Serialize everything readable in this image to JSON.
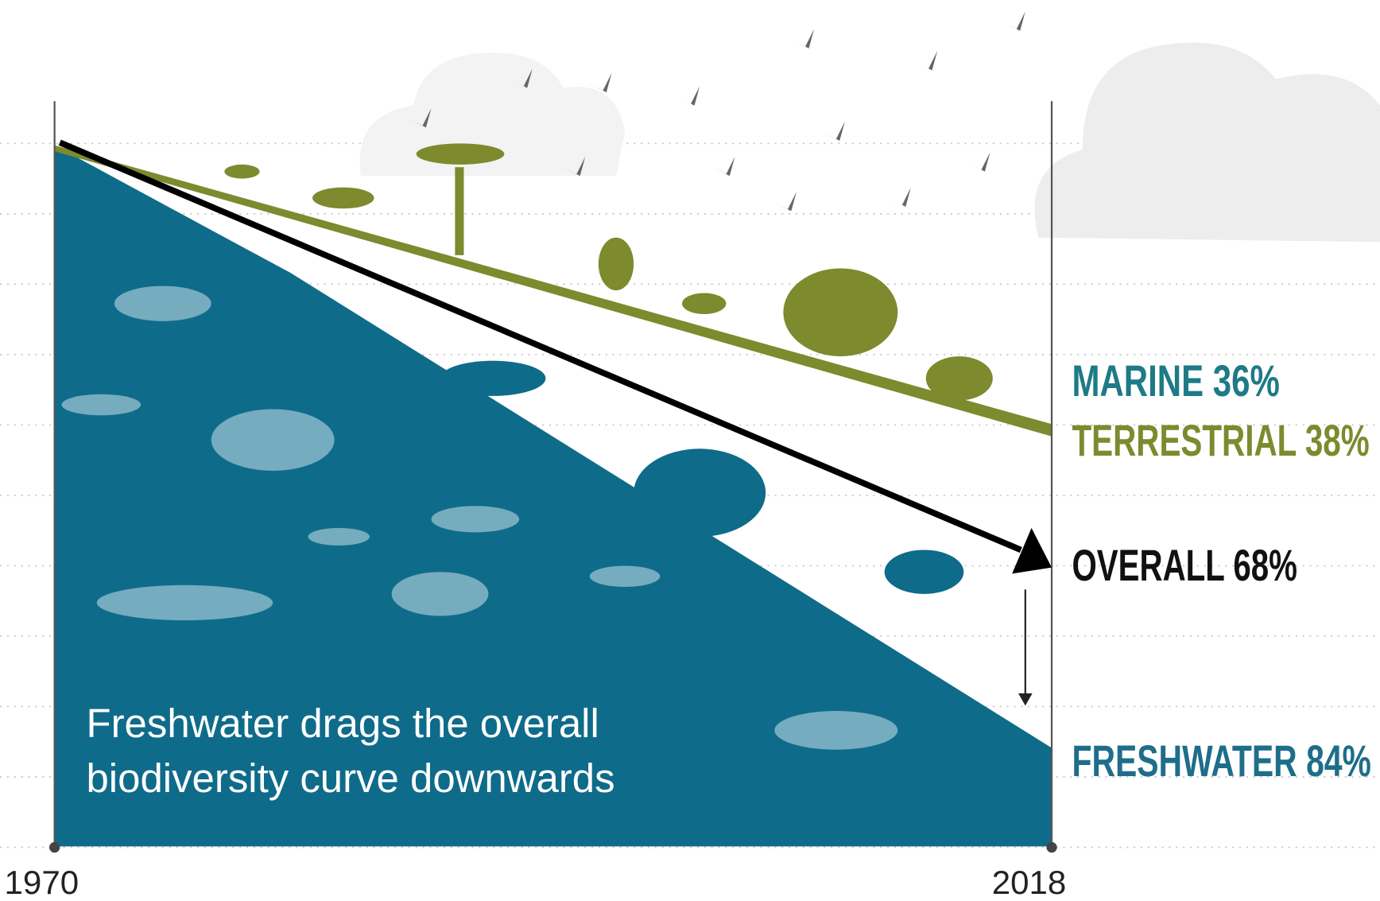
{
  "caption": [
    "Freshwater drags the overall",
    "biodiversity curve downwards"
  ],
  "axis": {
    "start": "1970",
    "end": "2018"
  },
  "labels": [
    {
      "text": "MARINE 36%",
      "color": "#1e7a86"
    },
    {
      "text": "TERRESTRIAL 38%",
      "color": "#7d8a2e"
    },
    {
      "text": "OVERALL 68%",
      "color": "#111111"
    },
    {
      "text": "FRESHWATER 84%",
      "color": "#1e6e8a"
    }
  ]
}
